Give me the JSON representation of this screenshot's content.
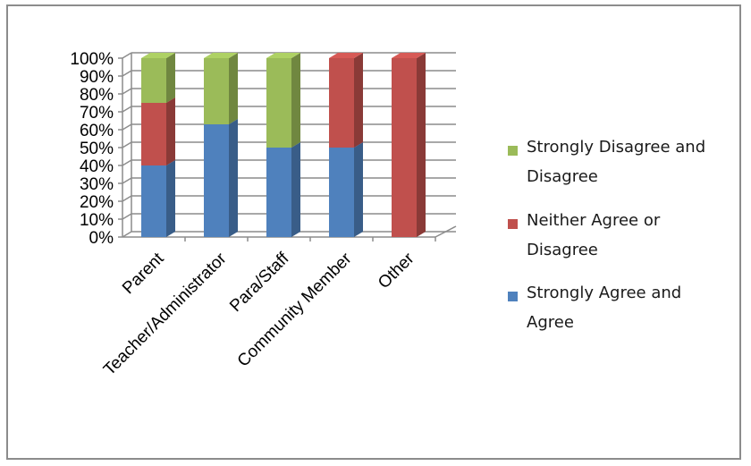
{
  "chart_data": {
    "type": "bar",
    "stacked": true,
    "percent": true,
    "style": "3d",
    "categories": [
      "Parent",
      "Teacher/Administrator",
      "Para/Staff",
      "Community Member",
      "Other"
    ],
    "series": [
      {
        "name": "Strongly Agree and Agree",
        "color": "#4f81bd",
        "values": [
          40,
          63,
          50,
          50,
          0
        ]
      },
      {
        "name": "Neither Agree or Disagree",
        "color": "#c0504d",
        "values": [
          35,
          0,
          0,
          50,
          100
        ]
      },
      {
        "name": "Strongly Disagree and Disagree",
        "color": "#9bbb59",
        "values": [
          25,
          37,
          50,
          0,
          0
        ]
      }
    ],
    "y_ticks": [
      "0%",
      "10%",
      "20%",
      "30%",
      "40%",
      "50%",
      "60%",
      "70%",
      "80%",
      "90%",
      "100%"
    ],
    "ylim": [
      0,
      100
    ],
    "grid": true,
    "legend_position": "right",
    "legend": [
      {
        "lines": [
          "Strongly Disagree and",
          "Disagree"
        ],
        "color": "#9bbb59"
      },
      {
        "lines": [
          "Neither Agree or",
          "Disagree"
        ],
        "color": "#c0504d"
      },
      {
        "lines": [
          "Strongly Agree and",
          "Agree"
        ],
        "color": "#4f81bd"
      }
    ]
  }
}
